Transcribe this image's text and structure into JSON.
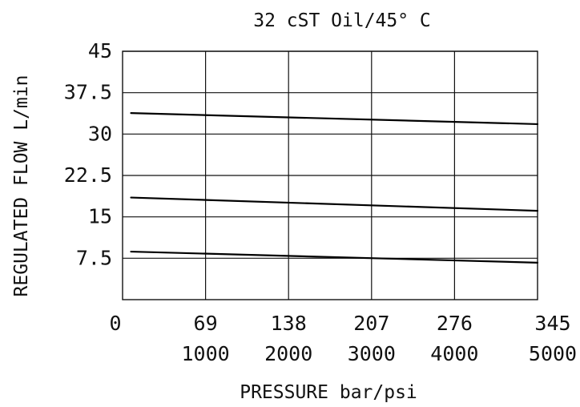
{
  "chart_data": {
    "type": "line",
    "title": "32 cST Oil/45° C",
    "xlabel": "PRESSURE bar/psi",
    "ylabel": "REGULATED FLOW L/min",
    "x_ticks": [
      {
        "bar": "0",
        "psi": "",
        "value": 0
      },
      {
        "bar": "69",
        "psi": "1000",
        "value": 69
      },
      {
        "bar": "138",
        "psi": "2000",
        "value": 138
      },
      {
        "bar": "207",
        "psi": "3000",
        "value": 207
      },
      {
        "bar": "276",
        "psi": "4000",
        "value": 276
      },
      {
        "bar": "345",
        "psi": "5000",
        "value": 345
      }
    ],
    "y_ticks": [
      "7.5",
      "15",
      "22.5",
      "30",
      "37.5",
      "45"
    ],
    "xlim": [
      0,
      345
    ],
    "ylim": [
      0,
      45
    ],
    "grid": true,
    "series": [
      {
        "x": [
          7,
          345
        ],
        "y": [
          33.8,
          31.8
        ]
      },
      {
        "x": [
          7,
          345
        ],
        "y": [
          18.5,
          16.1
        ]
      },
      {
        "x": [
          7,
          345
        ],
        "y": [
          8.7,
          6.7
        ]
      }
    ]
  }
}
